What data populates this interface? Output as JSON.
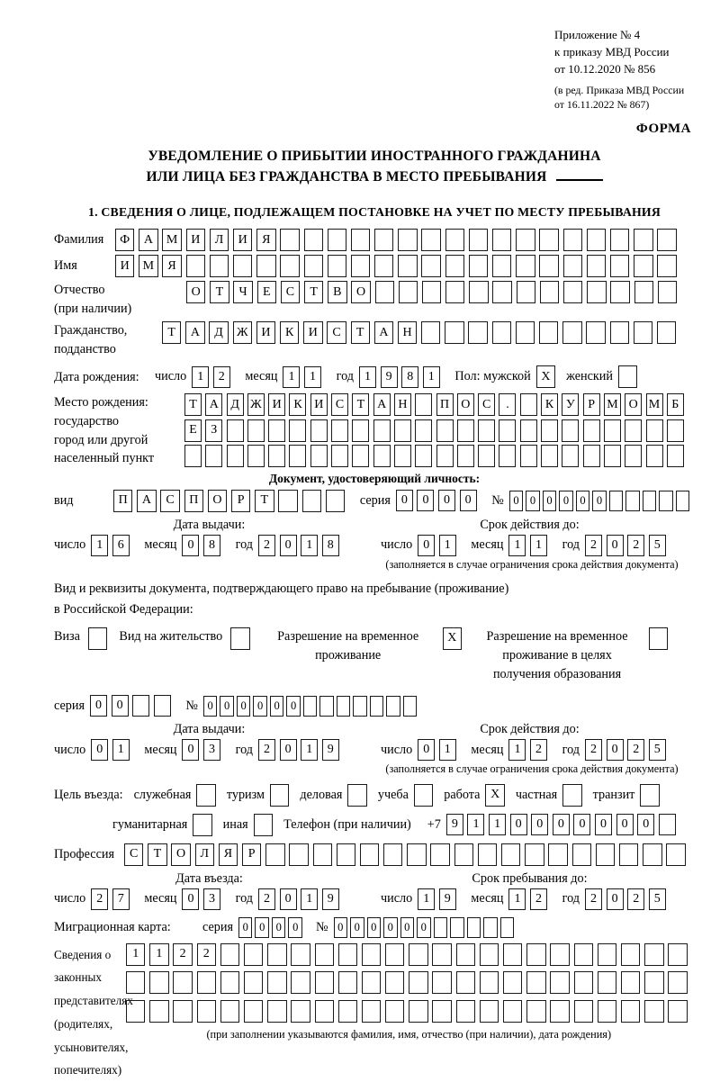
{
  "labels": {
    "day": "число",
    "month": "месяц",
    "year": "год"
  },
  "meta": {
    "ref_lines": [
      "Приложение № 4",
      "к приказу МВД России",
      "от 10.12.2020 № 856"
    ],
    "amend_lines": [
      "(в ред. Приказа МВД России",
      "от 16.11.2022 № 867)"
    ],
    "form_label": "ФОРМА"
  },
  "title": {
    "line1": "УВЕДОМЛЕНИЕ О ПРИБЫТИИ ИНОСТРАННОГО ГРАЖДАНИНА",
    "line2": "ИЛИ ЛИЦА БЕЗ ГРАЖДАНСТВА В МЕСТО ПРЕБЫВАНИЯ"
  },
  "section1": {
    "heading": "1. СВЕДЕНИЯ О ЛИЦЕ, ПОДЛЕЖАЩЕМ ПОСТАНОВКЕ НА УЧЕТ ПО МЕСТУ ПРЕБЫВАНИЯ"
  },
  "person": {
    "surname_label": "Фамилия",
    "surname": "ФАМИЛИЯ",
    "name_label": "Имя",
    "name": "ИМЯ",
    "patronymic_label": "Отчество",
    "patronymic_label2": "(при наличии)",
    "patronymic": "ОТЧЕСТВО",
    "citizenship_label": "Гражданство,",
    "citizenship_label2": "подданство",
    "citizenship": "ТАДЖИКИСТАН",
    "birth_date_label": "Дата рождения:",
    "birth_day": "12",
    "birth_month": "11",
    "birth_year": "1981",
    "gender_label": "Пол: мужской",
    "male": "X",
    "female_label": "женский",
    "female": "",
    "birth_place_label": [
      "Место рождения:",
      "государство",
      "город или другой",
      "населенный пункт"
    ],
    "birth_place_row1": "ТАДЖИКИСТАН ПОС. КУРМОМБ",
    "birth_place_row2": "ЕЗ",
    "birth_place_row3": ""
  },
  "identity": {
    "heading": "Документ, удостоверяющий личность:",
    "type_label": "вид",
    "type": "ПАСПОРТ",
    "series_label": "серия",
    "series": "0000",
    "number_label": "№",
    "number": "000000",
    "issue_heading": "Дата выдачи:",
    "issue_day": "16",
    "issue_month": "08",
    "issue_year": "2018",
    "valid_heading": "Срок действия до:",
    "valid_day": "01",
    "valid_month": "11",
    "valid_year": "2025",
    "valid_note": "(заполняется в случае ограничения срока действия документа)"
  },
  "residence": {
    "heading1": "Вид и реквизиты документа, подтверждающего право на пребывание (проживание)",
    "heading2": "в Российской Федерации:",
    "options": [
      {
        "label": "Виза",
        "checked": ""
      },
      {
        "label": "Вид на жительство",
        "checked": ""
      },
      {
        "label": "Разрешение на временное проживание",
        "checked": "X"
      },
      {
        "label": "Разрешение на временное проживание в целях получения образования",
        "checked": ""
      }
    ],
    "series_label": "серия",
    "series": "00",
    "number_label": "№",
    "number": "000000",
    "issue_heading": "Дата выдачи:",
    "issue_day": "01",
    "issue_month": "03",
    "issue_year": "2019",
    "valid_heading": "Срок действия до:",
    "valid_day": "01",
    "valid_month": "12",
    "valid_year": "2025",
    "valid_note": "(заполняется в случае ограничения срока действия документа)"
  },
  "visit": {
    "purpose_label": "Цель въезда:",
    "purposes_row1": [
      {
        "label": "служебная",
        "checked": ""
      },
      {
        "label": "туризм",
        "checked": ""
      },
      {
        "label": "деловая",
        "checked": ""
      },
      {
        "label": "учеба",
        "checked": ""
      },
      {
        "label": "работа",
        "checked": "X"
      },
      {
        "label": "частная",
        "checked": ""
      },
      {
        "label": "транзит",
        "checked": ""
      }
    ],
    "purposes_row2": [
      {
        "label": "гуманитарная",
        "checked": ""
      },
      {
        "label": "иная",
        "checked": ""
      }
    ],
    "phone_label": "Телефон (при наличии)",
    "phone_prefix": "+7",
    "phone": "9110000000",
    "profession_label": "Профессия",
    "profession": "СТОЛЯР",
    "entry_heading": "Дата въезда:",
    "entry_day": "27",
    "entry_month": "03",
    "entry_year": "2019",
    "stay_heading": "Срок пребывания до:",
    "stay_day": "19",
    "stay_month": "12",
    "stay_year": "2025"
  },
  "migration_card": {
    "label": "Миграционная карта:",
    "series_label": "серия",
    "series": "0000",
    "number_label": "№",
    "number": "000000"
  },
  "representatives": {
    "label_lines": [
      "Сведения о",
      "законных",
      "представителях",
      "(родителях,",
      "усыновителях,",
      "попечителях)"
    ],
    "row1": "1122",
    "row2": "",
    "row3": "",
    "note": "(при заполнении указываются фамилия, имя, отчество (при наличии), дата рождения)"
  }
}
